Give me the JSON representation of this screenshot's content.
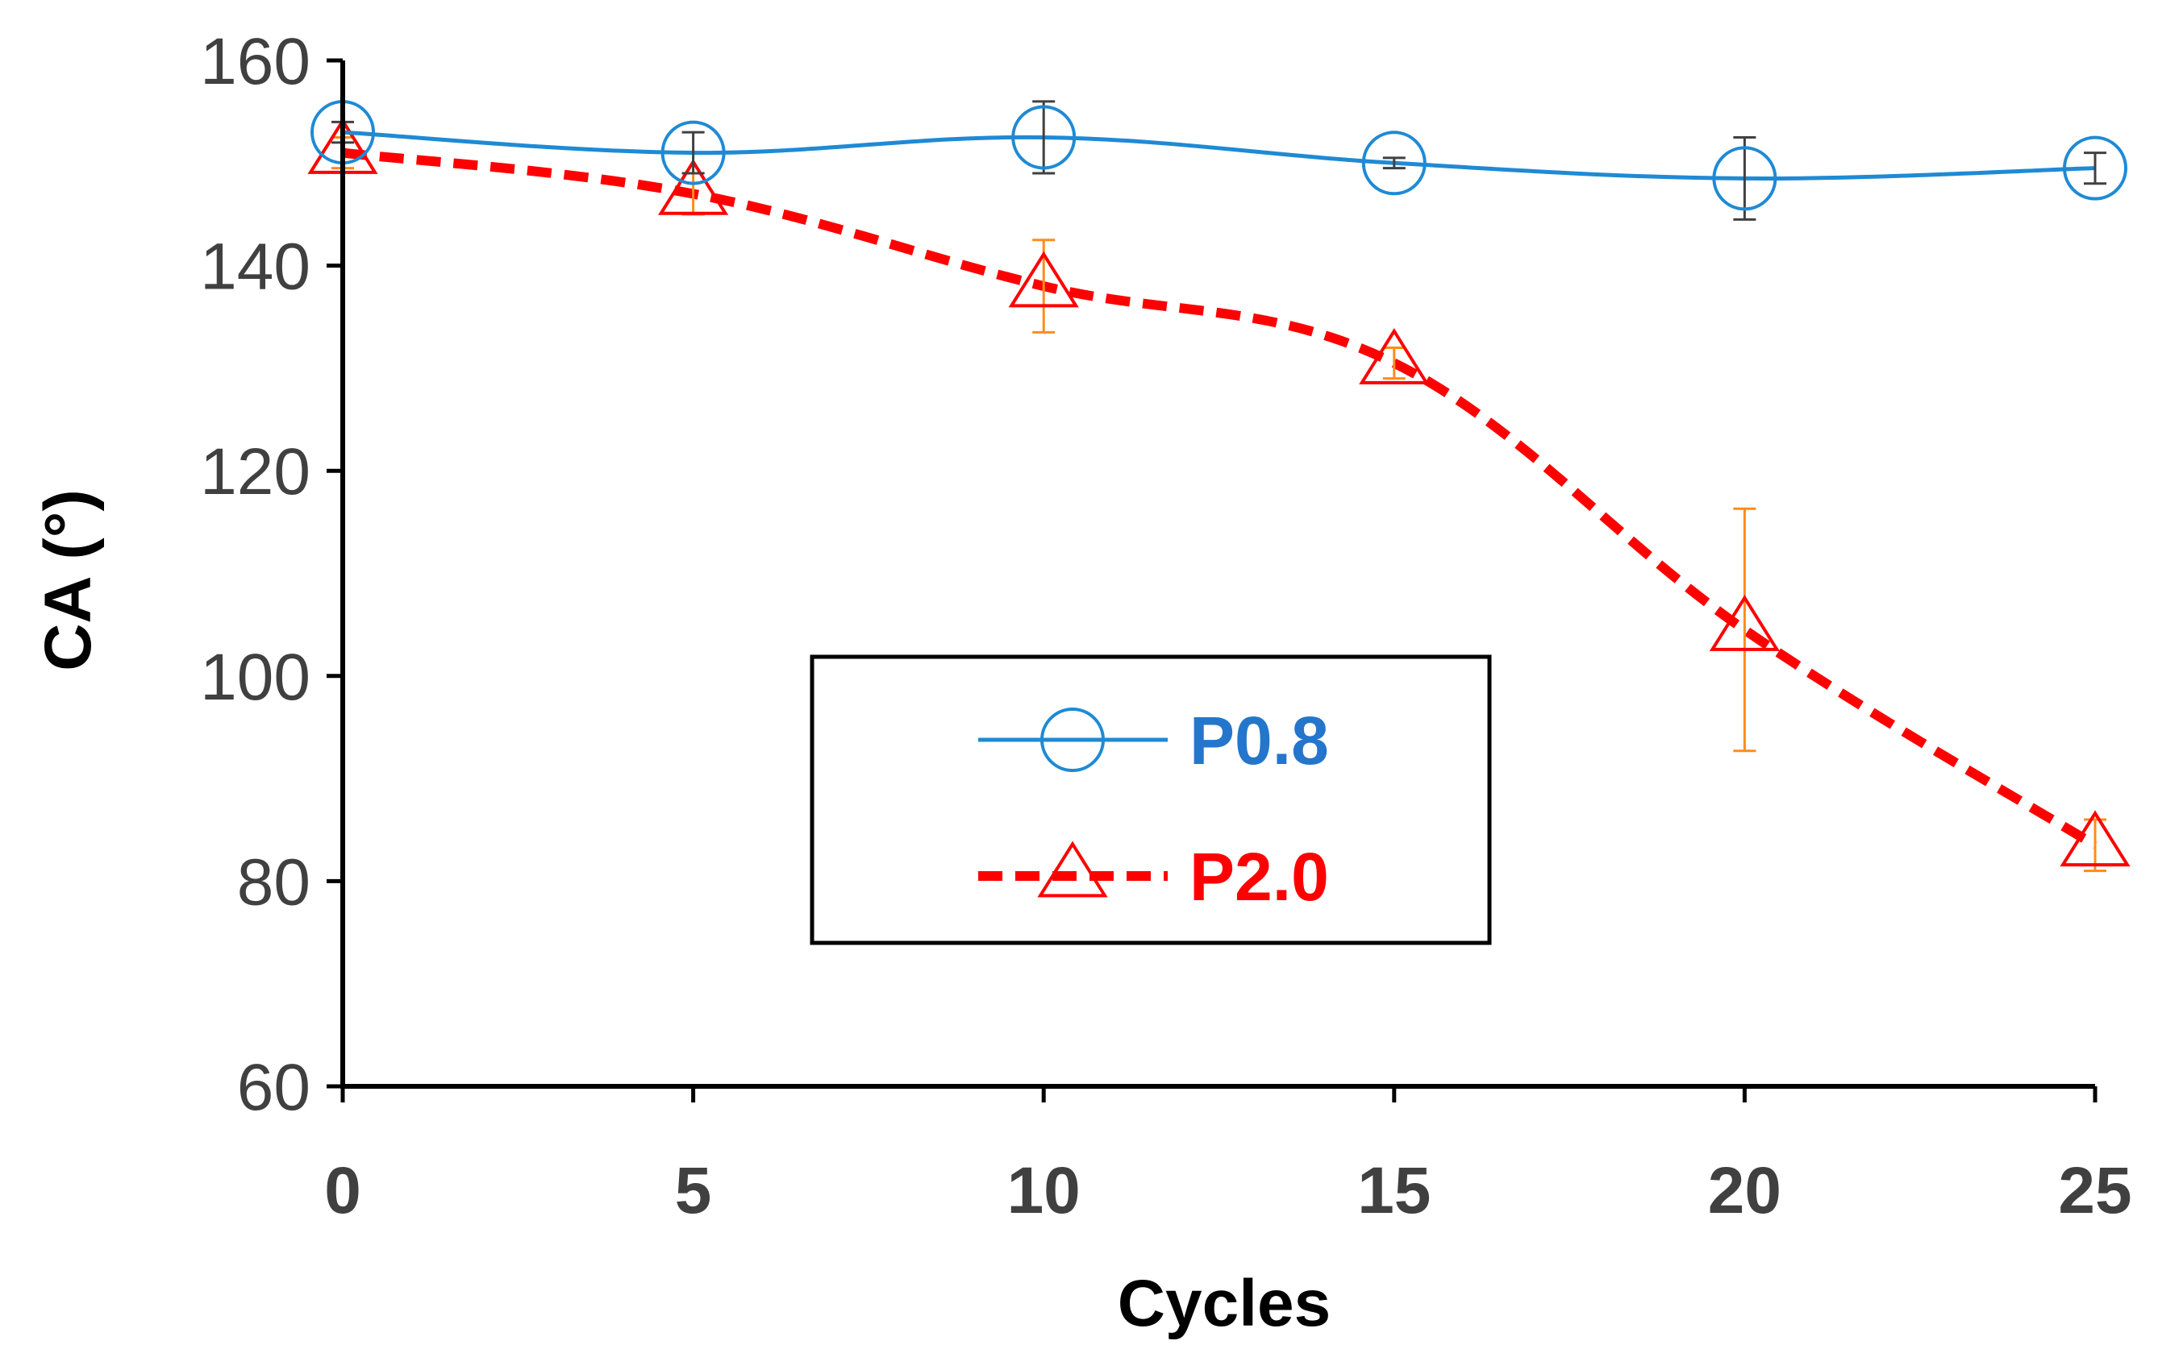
{
  "chart_data": {
    "type": "line",
    "title": "",
    "xlabel": "Cycles",
    "ylabel": "CA (°)",
    "xlim": [
      0,
      25
    ],
    "ylim": [
      60,
      160
    ],
    "x_ticks": [
      0,
      5,
      10,
      15,
      20,
      25
    ],
    "y_ticks": [
      60,
      80,
      100,
      120,
      140,
      160
    ],
    "x_tick_labels": [
      "0",
      "5",
      "10",
      "15",
      "20",
      "25"
    ],
    "y_tick_labels": [
      "60",
      "80",
      "100",
      "120",
      "140",
      "160"
    ],
    "grid": false,
    "legend_position": "center-bottom",
    "x": [
      0,
      5,
      10,
      15,
      20,
      25
    ],
    "series": [
      {
        "name": "P0.8",
        "values": [
          153,
          151,
          152.5,
          150,
          148.5,
          149.5
        ],
        "errors": [
          1.0,
          2.0,
          3.5,
          0.5,
          4.0,
          1.5
        ],
        "color": "#1f8ad4",
        "label_color": "#2476cc",
        "error_color": "#404040",
        "marker": "circle",
        "line_style": "solid"
      },
      {
        "name": "P2.0",
        "values": [
          151,
          147,
          138,
          130.5,
          104.5,
          83.5
        ],
        "errors": [
          1.5,
          2.0,
          4.5,
          1.5,
          11.8,
          2.5
        ],
        "color": "#ff0000",
        "label_color": "#ff0000",
        "error_color": "#ff8c1a",
        "marker": "triangle",
        "line_style": "dashed"
      }
    ]
  }
}
